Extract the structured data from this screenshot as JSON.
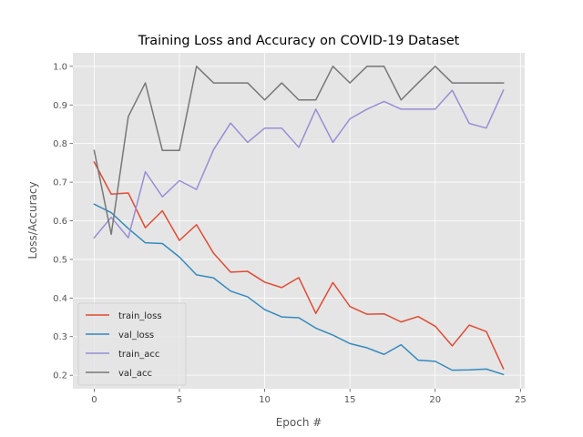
{
  "chart_data": {
    "type": "line",
    "title": "Training Loss and Accuracy on COVID-19 Dataset",
    "xlabel": "Epoch #",
    "ylabel": "Loss/Accuracy",
    "xlim": [
      -1.25,
      25.25
    ],
    "ylim": [
      0.165,
      1.035
    ],
    "xticks": [
      0,
      5,
      10,
      15,
      20,
      25
    ],
    "yticks": [
      0.2,
      0.3,
      0.4,
      0.5,
      0.6,
      0.7,
      0.8,
      0.9,
      1.0
    ],
    "ytick_labels": [
      "0.2",
      "0.3",
      "0.4",
      "0.5",
      "0.6",
      "0.7",
      "0.8",
      "0.9",
      "1.0"
    ],
    "grid": true,
    "legend_position": "lower-left",
    "style": {
      "background": "#e5e5e5",
      "grid_color": "#ffffff"
    },
    "x": [
      0,
      1,
      2,
      3,
      4,
      5,
      6,
      7,
      8,
      9,
      10,
      11,
      12,
      13,
      14,
      15,
      16,
      17,
      18,
      19,
      20,
      21,
      22,
      23,
      24
    ],
    "series": [
      {
        "name": "train_loss",
        "color": "#e24a33",
        "values": [
          0.752,
          0.669,
          0.672,
          0.582,
          0.626,
          0.549,
          0.59,
          0.516,
          0.467,
          0.469,
          0.441,
          0.427,
          0.453,
          0.36,
          0.44,
          0.378,
          0.358,
          0.359,
          0.338,
          0.352,
          0.327,
          0.276,
          0.33,
          0.313,
          0.217
        ]
      },
      {
        "name": "val_loss",
        "color": "#348abd",
        "values": [
          0.643,
          0.621,
          0.58,
          0.543,
          0.541,
          0.506,
          0.46,
          0.452,
          0.418,
          0.403,
          0.37,
          0.351,
          0.349,
          0.322,
          0.304,
          0.282,
          0.271,
          0.254,
          0.279,
          0.239,
          0.236,
          0.213,
          0.214,
          0.216,
          0.202
        ]
      },
      {
        "name": "train_acc",
        "color": "#988ed5",
        "values": [
          0.556,
          0.609,
          0.556,
          0.727,
          0.662,
          0.704,
          0.681,
          0.784,
          0.853,
          0.803,
          0.84,
          0.84,
          0.79,
          0.889,
          0.803,
          0.864,
          0.889,
          0.909,
          0.889,
          0.889,
          0.889,
          0.938,
          0.852,
          0.84,
          0.938
        ]
      },
      {
        "name": "val_acc",
        "color": "#777777",
        "values": [
          0.782,
          0.565,
          0.87,
          0.957,
          0.782,
          0.782,
          1.0,
          0.957,
          0.957,
          0.957,
          0.913,
          0.957,
          0.913,
          0.913,
          1.0,
          0.957,
          1.0,
          1.0,
          0.913,
          0.957,
          1.0,
          0.957,
          0.957,
          0.957,
          0.957
        ]
      }
    ]
  }
}
